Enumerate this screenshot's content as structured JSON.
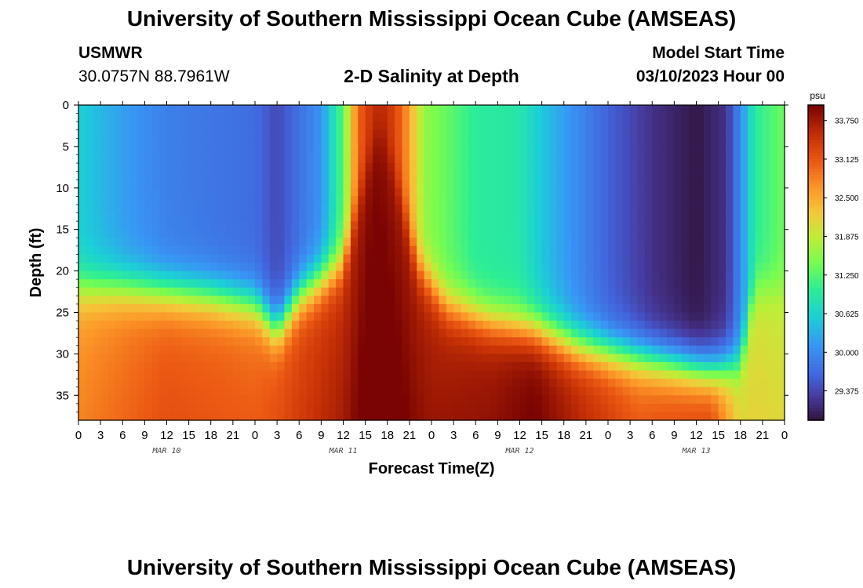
{
  "header": {
    "title": "University of Southern Mississippi Ocean Cube (AMSEAS)",
    "station": "USMWR",
    "coords": "30.0757N  88.7961W",
    "plot_title": "2-D Salinity at Depth",
    "model_label": "Model Start Time",
    "model_time": "03/10/2023 Hour 00"
  },
  "footer": {
    "title": "University of Southern Mississippi Ocean Cube (AMSEAS)"
  },
  "chart_data": {
    "type": "heatmap",
    "title": "2-D Salinity at Depth",
    "xlabel": "Forecast Time(Z)",
    "ylabel": "Depth (ft)",
    "x_hours_range": [
      0,
      96
    ],
    "ylim": [
      38,
      0
    ],
    "x_tick_labels": [
      "0",
      "3",
      "6",
      "9",
      "12",
      "15",
      "18",
      "21",
      "0",
      "3",
      "6",
      "9",
      "12",
      "15",
      "18",
      "21",
      "0",
      "3",
      "6",
      "9",
      "12",
      "15",
      "18",
      "21",
      "0",
      "3",
      "6",
      "9",
      "12",
      "15",
      "18",
      "21",
      "0"
    ],
    "y_ticks": [
      0,
      5,
      10,
      15,
      20,
      25,
      30,
      35
    ],
    "y_tick_labels": [
      "0",
      "5",
      "10",
      "15",
      "20",
      "25",
      "30",
      "35"
    ],
    "day_labels": [
      {
        "hour": 12,
        "label": "MAR 10"
      },
      {
        "hour": 36,
        "label": "MAR 11"
      },
      {
        "hour": 60,
        "label": "MAR 12"
      },
      {
        "hour": 84,
        "label": "MAR 13"
      }
    ],
    "colorbar": {
      "unit": "psu",
      "range": [
        28.9,
        34.0
      ],
      "ticks": [
        29.375,
        30.0,
        30.625,
        31.25,
        31.875,
        32.5,
        33.125,
        33.75
      ],
      "tick_labels": [
        "29.375",
        "30.000",
        "30.625",
        "31.250",
        "31.875",
        "32.500",
        "33.125",
        "33.750"
      ]
    },
    "surface_salinity_by_hour": [
      [
        0,
        30.6
      ],
      [
        6,
        30.2
      ],
      [
        12,
        29.9
      ],
      [
        18,
        29.8
      ],
      [
        24,
        29.7
      ],
      [
        27,
        29.4
      ],
      [
        33,
        30.1
      ],
      [
        36,
        31.3
      ],
      [
        38,
        33.0
      ],
      [
        40,
        33.5
      ],
      [
        42,
        33.5
      ],
      [
        44,
        33.0
      ],
      [
        47,
        31.6
      ],
      [
        54,
        31.0
      ],
      [
        60,
        30.9
      ],
      [
        64,
        30.4
      ],
      [
        68,
        30.0
      ],
      [
        72,
        29.6
      ],
      [
        78,
        29.2
      ],
      [
        84,
        28.95
      ],
      [
        88,
        29.2
      ],
      [
        90,
        30.0
      ],
      [
        92,
        31.0
      ],
      [
        96,
        31.4
      ]
    ],
    "halocline_depth_by_hour": [
      [
        0,
        22
      ],
      [
        6,
        22
      ],
      [
        12,
        22.5
      ],
      [
        18,
        23
      ],
      [
        24,
        24
      ],
      [
        27,
        27
      ],
      [
        30,
        23
      ],
      [
        33,
        21
      ],
      [
        36,
        19
      ],
      [
        39,
        8
      ],
      [
        41,
        2
      ],
      [
        43,
        8
      ],
      [
        46,
        19
      ],
      [
        50,
        24
      ],
      [
        56,
        26
      ],
      [
        62,
        27
      ],
      [
        68,
        29
      ],
      [
        74,
        30
      ],
      [
        80,
        31
      ],
      [
        86,
        32
      ],
      [
        90,
        31
      ],
      [
        92,
        22
      ],
      [
        96,
        22
      ]
    ],
    "bottom_salinity_by_hour": [
      [
        0,
        32.6
      ],
      [
        12,
        33.0
      ],
      [
        24,
        32.9
      ],
      [
        30,
        33.2
      ],
      [
        36,
        33.5
      ],
      [
        40,
        33.9
      ],
      [
        48,
        33.6
      ],
      [
        56,
        33.7
      ],
      [
        62,
        33.9
      ],
      [
        68,
        33.5
      ],
      [
        76,
        33.0
      ],
      [
        86,
        33.2
      ],
      [
        90,
        32.0
      ],
      [
        96,
        31.9
      ]
    ]
  }
}
